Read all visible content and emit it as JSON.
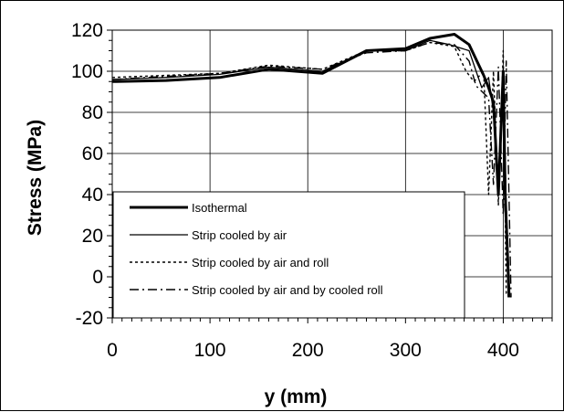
{
  "chart_data": {
    "type": "line",
    "title": "",
    "xlabel": "y (mm)",
    "ylabel": "Stress (MPa)",
    "xlim": [
      0,
      450
    ],
    "ylim": [
      -20,
      120
    ],
    "xticks": [
      0,
      100,
      200,
      300,
      400
    ],
    "xtick_labels": [
      "0",
      "100",
      "200",
      "300",
      "400"
    ],
    "yticks": [
      -20,
      0,
      20,
      40,
      60,
      80,
      100,
      120
    ],
    "ytick_labels": [
      "-20",
      "0",
      "20",
      "40",
      "60",
      "80",
      "100",
      "120"
    ],
    "grid": true,
    "legend_position": "lower-left",
    "series": [
      {
        "name": "Isothermal",
        "style": "solid-thick",
        "color": "#000000",
        "x": [
          0,
          55,
          110,
          160,
          215,
          260,
          300,
          325,
          350,
          365,
          380,
          385,
          390,
          395,
          400,
          402,
          406
        ],
        "y": [
          95,
          95.5,
          97,
          101,
          99,
          110,
          111,
          116,
          118,
          113,
          98,
          92,
          85,
          40,
          100,
          40,
          -10
        ]
      },
      {
        "name": "Strip cooled by air",
        "style": "solid-thin",
        "color": "#000000",
        "x": [
          0,
          55,
          110,
          160,
          215,
          260,
          300,
          325,
          345,
          365,
          378,
          385,
          390,
          395,
          400,
          405
        ],
        "y": [
          96,
          97,
          98.5,
          102,
          100,
          110,
          110,
          115,
          113,
          110,
          92,
          97,
          80,
          45,
          102,
          -10
        ]
      },
      {
        "name": "Strip cooled by air and roll",
        "style": "dotted",
        "color": "#000000",
        "x": [
          0,
          55,
          110,
          160,
          215,
          260,
          300,
          325,
          350,
          362,
          370,
          380,
          385,
          390,
          395,
          400,
          403,
          408
        ],
        "y": [
          97,
          98,
          99,
          103,
          101,
          110,
          110,
          114,
          112,
          100,
          95,
          100,
          40,
          100,
          35,
          110,
          -8,
          -10
        ]
      },
      {
        "name": "Strip cooled by air and by cooled roll",
        "style": "dash-dot",
        "color": "#000000",
        "x": [
          0,
          55,
          110,
          160,
          215,
          260,
          300,
          325,
          350,
          365,
          372,
          385,
          390,
          395,
          400,
          403,
          408
        ],
        "y": [
          96,
          97.5,
          99,
          102.5,
          101,
          109,
          110,
          114,
          113,
          105,
          93,
          87,
          45,
          102,
          30,
          105,
          -10
        ]
      }
    ]
  }
}
